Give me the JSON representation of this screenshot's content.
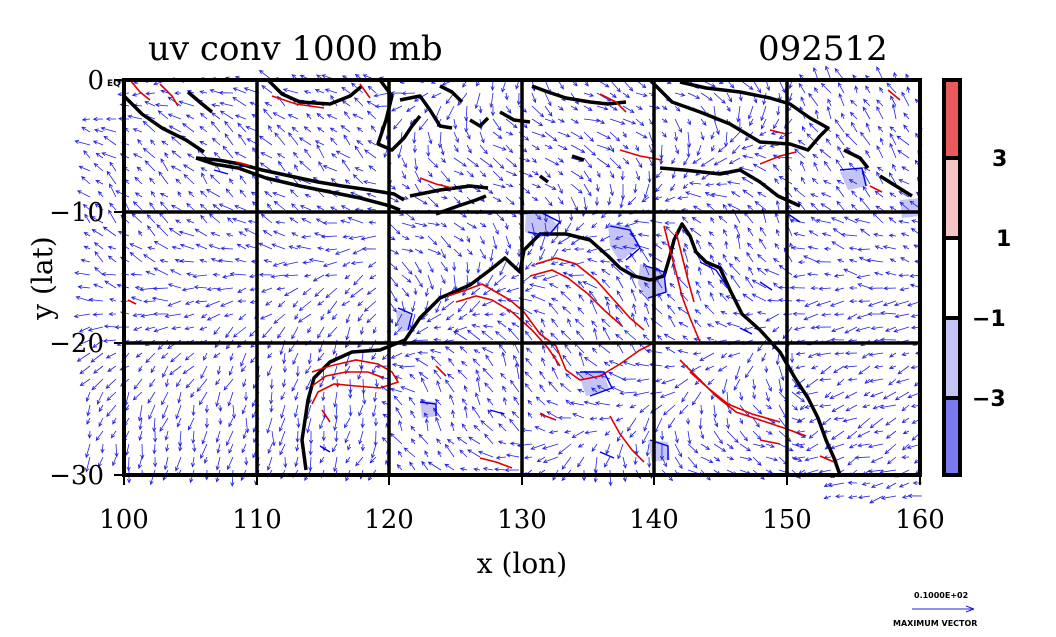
{
  "chart_data": {
    "type": "vector_field_contour_map",
    "title": "uv conv 1000 mb",
    "timestamp": "092512",
    "xlabel": "x (lon)",
    "ylabel": "y (lat)",
    "xlim": [
      100,
      160
    ],
    "ylim": [
      -30,
      0
    ],
    "x_ticks": [
      100,
      110,
      120,
      130,
      140,
      150,
      160
    ],
    "x_tick_labels": [
      "100",
      "110",
      "120",
      "130",
      "140",
      "150",
      "160"
    ],
    "y_ticks": [
      0,
      -10,
      -20,
      -30
    ],
    "y_tick_labels": [
      "0",
      "−10",
      "−20",
      "−30"
    ],
    "corner_label": "EQ",
    "grid": true,
    "colorbar": {
      "levels": [
        -5,
        -3,
        -1,
        1,
        3,
        5
      ],
      "tick_labels": [
        "−3",
        "−1",
        "1",
        "3"
      ],
      "tick_values": [
        -3,
        -1,
        1,
        3
      ],
      "colors": [
        "#7a7af0",
        "#c4c4f6",
        "#ffffff",
        "#f6c4c4",
        "#ea5a5a"
      ]
    },
    "vector_legend": {
      "value_label": "0.1000E+02",
      "caption": "MAXIMUM VECTOR"
    },
    "contours": {
      "positive_color": "#e00000",
      "negative_color": "#0000e0",
      "coastline_color": "#000000"
    },
    "vectors_color": "#2020e0"
  }
}
